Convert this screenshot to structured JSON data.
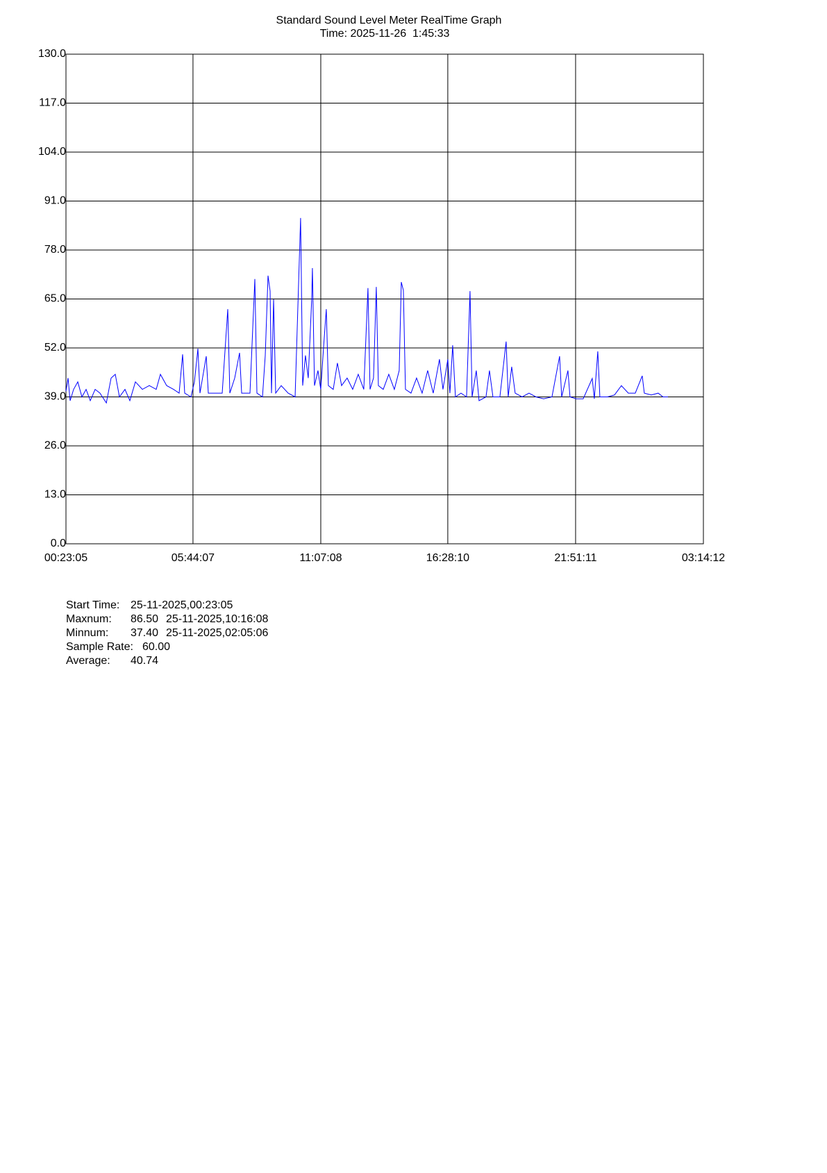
{
  "chart_data": {
    "type": "line",
    "title": "Standard Sound Level Meter RealTime Graph",
    "subtitle": "Time: 2025-11-26  1:45:33",
    "color": "#0000ff",
    "grid": true,
    "x": [
      1385,
      1701,
      2017,
      2543,
      3175,
      3807,
      4439,
      5071,
      5808,
      6545,
      7506,
      8230,
      8862,
      9494,
      10336,
      11073,
      11915,
      12968,
      14021,
      15074,
      15706,
      16654,
      17707,
      18549,
      19075,
      19391,
      20339,
      20866,
      21392,
      21708,
      22656,
      22972,
      24236,
      25078,
      25921,
      26237,
      26974,
      27711,
      28027,
      29291,
      30028,
      30344,
      31186,
      31607,
      32028,
      32344,
      32555,
      32871,
      33187,
      34029,
      35082,
      36135,
      36968,
      37283,
      37705,
      38126,
      38652,
      38758,
      39074,
      39600,
      40022,
      40443,
      40864,
      41180,
      41917,
      42549,
      43181,
      44023,
      44866,
      45708,
      46550,
      47182,
      47498,
      48024,
      48446,
      48762,
      49499,
      50341,
      51183,
      51920,
      52236,
      52552,
      52868,
      53710,
      54553,
      55395,
      56237,
      57079,
      58027,
      58554,
      59291,
      59606,
      60028,
      60449,
      61291,
      62134,
      62660,
      62976,
      63608,
      64029,
      65082,
      65609,
      66135,
      67188,
      68136,
      68452,
      68978,
      69505,
      70558,
      71611,
      72664,
      73822,
      75086,
      76244,
      76560,
      77508,
      77823,
      78771,
      79824,
      81193,
      81509,
      82036,
      82352,
      83510,
      84563,
      85616,
      86669,
      87722,
      88775,
      89091,
      90144,
      91197,
      91934,
      92672
    ],
    "values": [
      40.5,
      44,
      38,
      41,
      43,
      39,
      41,
      38,
      41,
      40,
      37.4,
      44,
      45,
      39,
      41,
      38,
      43,
      41,
      42,
      41,
      45,
      42,
      41,
      40,
      50.3,
      40,
      39,
      43,
      51.8,
      40,
      49.8,
      40,
      40,
      40,
      62.3,
      40,
      44,
      50.7,
      40,
      40,
      70.3,
      40,
      39,
      50,
      71.2,
      67.1,
      40,
      64.9,
      40,
      42,
      40,
      39,
      86.5,
      42,
      50,
      44,
      65,
      73.2,
      42,
      46,
      41,
      52,
      62.3,
      42,
      41,
      48,
      42,
      44,
      41,
      45,
      41,
      67.9,
      41,
      44,
      68.2,
      42,
      41,
      45,
      41,
      46,
      69.5,
      67.3,
      41,
      40,
      44,
      40,
      46,
      40,
      49,
      41,
      49,
      40,
      52.7,
      39,
      40,
      39,
      67.1,
      39,
      46,
      38,
      39,
      46,
      39,
      39,
      53.7,
      39,
      47,
      40,
      39,
      40,
      39,
      38.5,
      39,
      49.8,
      39,
      46,
      39,
      38.5,
      38.5,
      43.9,
      38.5,
      51.1,
      39,
      39,
      39.5,
      42,
      40,
      40,
      44.6,
      40,
      39.5,
      40,
      39,
      39
    ],
    "xlim": [
      1385,
      98052
    ],
    "xticks": [
      {
        "value": 1385,
        "label": "00:23:05"
      },
      {
        "value": 20647,
        "label": "05:44:07"
      },
      {
        "value": 40028,
        "label": "11:07:08"
      },
      {
        "value": 59290,
        "label": "16:28:10"
      },
      {
        "value": 78671,
        "label": "21:51:11"
      },
      {
        "value": 98052,
        "label": "03:14:12"
      }
    ],
    "ylim": [
      0,
      130
    ],
    "yticks": [
      {
        "value": 0,
        "label": "0.0"
      },
      {
        "value": 13,
        "label": "13.0"
      },
      {
        "value": 26,
        "label": "26.0"
      },
      {
        "value": 39,
        "label": "39.0"
      },
      {
        "value": 52,
        "label": "52.0"
      },
      {
        "value": 65,
        "label": "65.0"
      },
      {
        "value": 78,
        "label": "78.0"
      },
      {
        "value": 91,
        "label": "91.0"
      },
      {
        "value": 104,
        "label": "104.0"
      },
      {
        "value": 117,
        "label": "117.0"
      },
      {
        "value": 130,
        "label": "130.0"
      }
    ]
  },
  "stats": [
    [
      "Start Time:",
      "25-11-2025,00:23:05"
    ],
    [
      "Maxnum:",
      "86.50",
      "25-11-2025,10:16:08"
    ],
    [
      "Minnum:",
      "37.40",
      "25-11-2025,02:05:06"
    ],
    [
      "Sample Rate:",
      "60.00"
    ],
    [
      "Average:",
      "40.74"
    ]
  ]
}
